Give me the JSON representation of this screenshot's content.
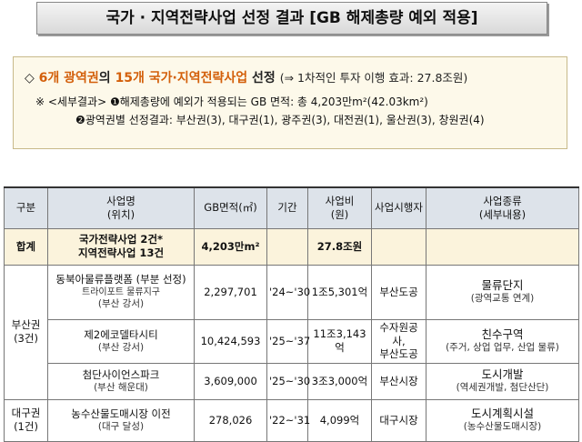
{
  "title": "국가 · 지역전략사업 선정 결과 [GB 해제총량 예외 적용]",
  "summary": {
    "headline": [
      "◇",
      "6개 광역권",
      "의",
      "15개 국가·지역전략사업",
      "선정",
      "(⇒ 1차적인 투자 이행 효과: 27.8조원)"
    ],
    "detail_1": [
      "※ <세부결과>",
      "❶해제총량에 예외가 적용되는 GB 면적: 총 4,203만m²(42.03km²)"
    ],
    "detail_2": "❷광역권별 선정결과: 부산권(3), 대구권(1), 광주권(3), 대전권(1), 울산권(3), 창원권(4)"
  },
  "table": {
    "header": [
      [
        "구분"
      ],
      [
        "사업명",
        "(위치)"
      ],
      [
        "GB면적(㎡)"
      ],
      [
        "기간"
      ],
      [
        "사업비",
        "(원)"
      ],
      [
        "사업시행자"
      ],
      [
        "사업종류",
        "(세부내용)"
      ]
    ],
    "total": {
      "label": "합계",
      "project": [
        "국가전략사업 2건*",
        "지역전략사업 13건"
      ],
      "area": "4,203만m²",
      "cost": "27.8조원"
    },
    "groups": [
      {
        "region": [
          "부산권",
          "(3건)"
        ],
        "rows": [
          {
            "project": [
              "동북아물류플랫폼 (부분 선정)",
              "트라이포트 물류지구",
              "(부산 강서)"
            ],
            "area": "2,297,701",
            "period": "'24~'30",
            "cost": "1조5,301억",
            "operator": [
              "부산도공"
            ],
            "type": [
              "물류단지",
              "(광역교통 연계)"
            ]
          },
          {
            "project": [
              "제2에코델타시티",
              "(부산 강서)"
            ],
            "area": "10,424,593",
            "period": "'25~'37",
            "cost": "11조3,143억",
            "operator": [
              "수자원공사,",
              "부산도공"
            ],
            "type": [
              "친수구역",
              "(주거, 상업 업무, 산업 물류)"
            ]
          },
          {
            "project": [
              "첨단사이언스파크",
              "(부산 해운대)"
            ],
            "area": "3,609,000",
            "period": "'25~'30",
            "cost": "3조3,000억",
            "operator": [
              "부산시장"
            ],
            "type": [
              "도시개발",
              "(역세권개발, 첨단산단)"
            ]
          }
        ]
      },
      {
        "region": [
          "대구권",
          "(1건)"
        ],
        "rows": [
          {
            "project": [
              "농수산물도매시장 이전",
              "(대구 달성)"
            ],
            "area": "278,026",
            "period": "'22~'31",
            "cost": "4,099억",
            "operator": [
              "대구시장"
            ],
            "type": [
              "도시계획시설",
              "(농수산물도매시장)"
            ]
          }
        ]
      }
    ]
  }
}
